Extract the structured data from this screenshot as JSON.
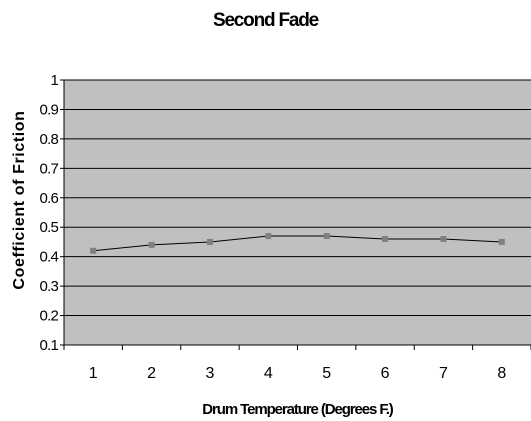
{
  "chart_data": {
    "type": "line",
    "title": "Second Fade",
    "xlabel": "Drum Temperature (Degrees F.)",
    "ylabel": "Coefficient of Friction",
    "categories": [
      "1",
      "2",
      "3",
      "4",
      "5",
      "6",
      "7",
      "8"
    ],
    "series": [
      {
        "values": [
          0.42,
          0.44,
          0.45,
          0.47,
          0.47,
          0.46,
          0.46,
          0.45
        ]
      }
    ],
    "ylim": [
      0.1,
      1
    ],
    "yticks": [
      "0.1",
      "0.2",
      "0.3",
      "0.4",
      "0.5",
      "0.6",
      "0.7",
      "0.8",
      "0.9",
      "1"
    ],
    "grid": true,
    "legend": "none",
    "colors": {
      "plot_background": "#c0c0c0",
      "line": "#000000",
      "marker": "#808080",
      "grid": "#000000"
    }
  }
}
